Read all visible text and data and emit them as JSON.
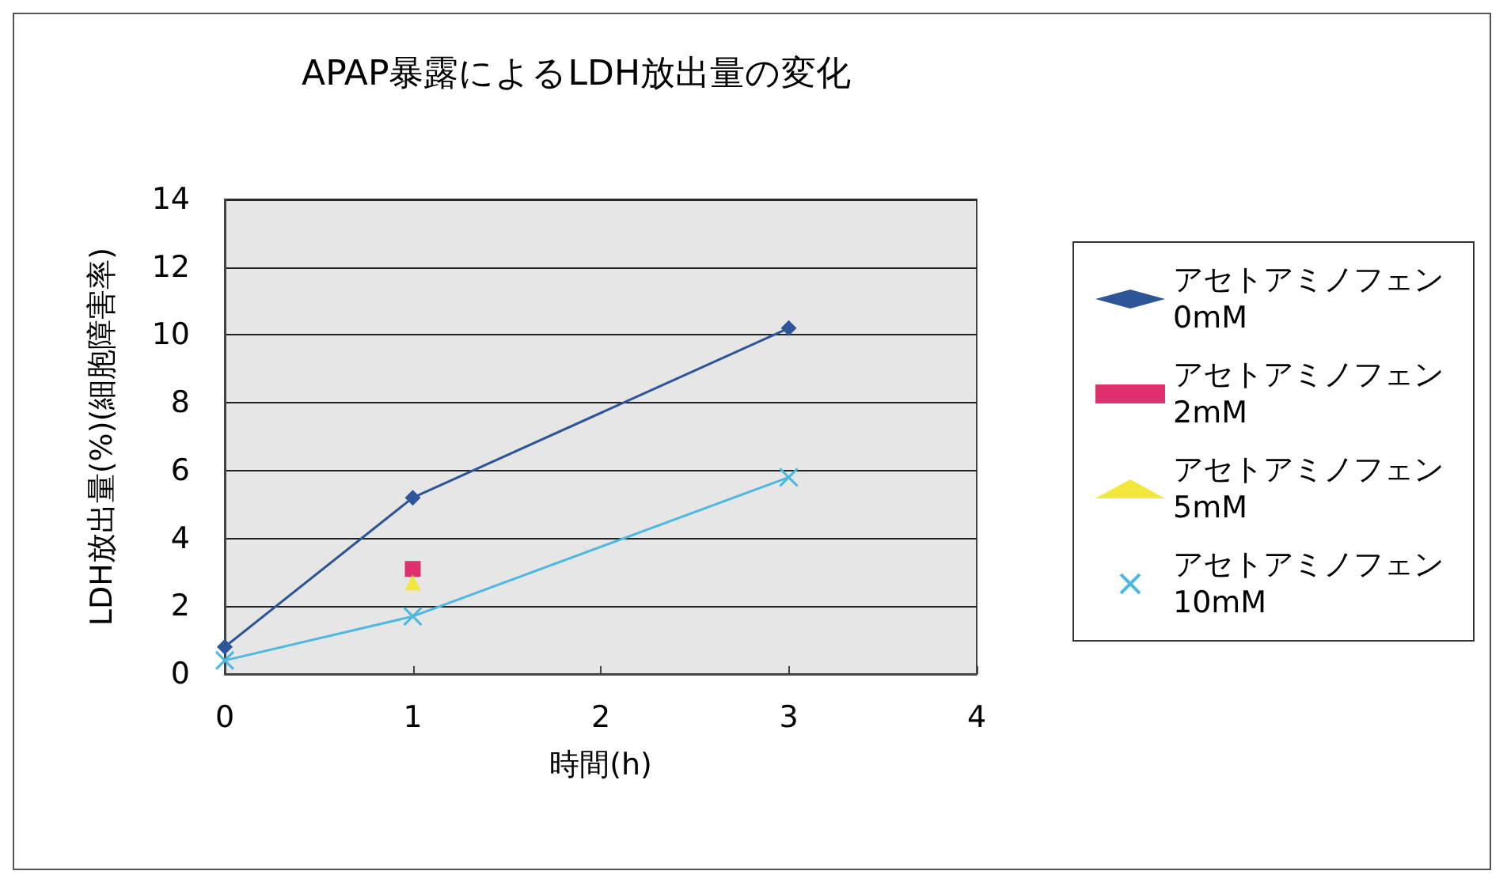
{
  "chart_data": {
    "type": "line",
    "title": "APAP暴露によるLDH放出量の変化",
    "xlabel": "時間(h)",
    "ylabel": "LDH放出量(%)(細胞障害率)",
    "xlim": [
      0,
      4
    ],
    "xticks": [
      0,
      1,
      2,
      3,
      4
    ],
    "ylim": [
      0,
      14
    ],
    "yticks": [
      0,
      2,
      4,
      6,
      8,
      10,
      12,
      14
    ],
    "grid": "y",
    "legend": "right",
    "series": [
      {
        "name": "アセトアミノフェン 0mM",
        "color": "#2e5597",
        "marker": "diamond",
        "x": [
          0,
          1,
          3
        ],
        "values": [
          0.8,
          5.2,
          10.2
        ]
      },
      {
        "name": "アセトアミノフェン 2mM",
        "color": "#e0306e",
        "marker": "square",
        "x": [
          1
        ],
        "values": [
          3.1
        ]
      },
      {
        "name": "アセトアミノフェン 5mM",
        "color": "#f2e83a",
        "marker": "triangle",
        "x": [
          1
        ],
        "values": [
          2.7
        ]
      },
      {
        "name": "アセトアミノフェン 10mM",
        "color": "#4fb8e0",
        "marker": "cross",
        "x": [
          0,
          1,
          3
        ],
        "values": [
          0.4,
          1.7,
          5.8
        ]
      }
    ]
  }
}
